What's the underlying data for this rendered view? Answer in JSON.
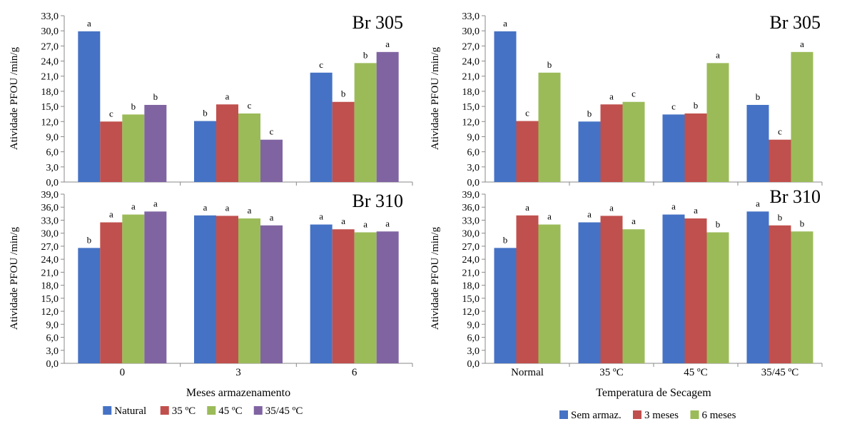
{
  "chart_data": [
    {
      "type": "bar",
      "title": "Br 305",
      "ylabel": "Atividade  PFOU /min/g",
      "xlabel": "",
      "ylim": [
        0,
        33
      ],
      "yticks": [
        "0,0",
        "3,0",
        "6,0",
        "9,0",
        "12,0",
        "15,0",
        "18,0",
        "21,0",
        "24,0",
        "27,0",
        "30,0",
        "33,0"
      ],
      "categories": [
        "0",
        "3",
        "6"
      ],
      "show_category_labels": false,
      "grid": false,
      "series": [
        {
          "name": "Natural",
          "color": "#4572c4",
          "values": [
            29.9,
            12.1,
            21.7
          ],
          "labels": [
            "a",
            "b",
            "c"
          ]
        },
        {
          "name": "35 ºC",
          "color": "#c0504d",
          "values": [
            12.0,
            15.4,
            15.9
          ],
          "labels": [
            "c",
            "a",
            "b"
          ]
        },
        {
          "name": "45 ºC",
          "color": "#9bbb59",
          "values": [
            13.4,
            13.6,
            23.6
          ],
          "labels": [
            "b",
            "c",
            "b"
          ]
        },
        {
          "name": "35/45 ºC",
          "color": "#8064a2",
          "values": [
            15.3,
            8.4,
            25.8
          ],
          "labels": [
            "b",
            "c",
            "a"
          ]
        }
      ]
    },
    {
      "type": "bar",
      "title": "Br 310",
      "ylabel": "Atividade  PFOU /min/g",
      "xlabel": "Meses armazenamento",
      "ylim": [
        0,
        39
      ],
      "yticks": [
        "0,0",
        "3,0",
        "6,0",
        "9,0",
        "12,0",
        "15,0",
        "18,0",
        "21,0",
        "24,0",
        "27,0",
        "30,0",
        "33,0",
        "36,0",
        "39,0"
      ],
      "categories": [
        "0",
        "3",
        "6"
      ],
      "show_category_labels": true,
      "grid": false,
      "legend": "bottom",
      "series": [
        {
          "name": "Natural",
          "color": "#4572c4",
          "values": [
            26.6,
            34.1,
            32.0
          ],
          "labels": [
            "b",
            "a",
            "a"
          ]
        },
        {
          "name": "35 ºC",
          "color": "#c0504d",
          "values": [
            32.5,
            34.0,
            30.9
          ],
          "labels": [
            "a",
            "a",
            "a"
          ]
        },
        {
          "name": "45 ºC",
          "color": "#9bbb59",
          "values": [
            34.3,
            33.4,
            30.2
          ],
          "labels": [
            "a",
            "a",
            "a"
          ]
        },
        {
          "name": "35/45 ºC",
          "color": "#8064a2",
          "values": [
            35.0,
            31.8,
            30.4
          ],
          "labels": [
            "a",
            "a",
            "a"
          ]
        }
      ]
    },
    {
      "type": "bar",
      "title": "Br 305",
      "ylabel": "Atividade  PFOU /min/g",
      "xlabel": "",
      "ylim": [
        0,
        33
      ],
      "yticks": [
        "0,0",
        "3,0",
        "6,0",
        "9,0",
        "12,0",
        "15,0",
        "18,0",
        "21,0",
        "24,0",
        "27,0",
        "30,0",
        "33,0"
      ],
      "categories": [
        "Normal",
        "35 ºC",
        "45 ºC",
        "35/45 ºC"
      ],
      "show_category_labels": false,
      "grid": false,
      "series": [
        {
          "name": "Sem armaz.",
          "color": "#4572c4",
          "values": [
            29.9,
            12.0,
            13.4,
            15.3
          ],
          "labels": [
            "a",
            "b",
            "c",
            "b"
          ]
        },
        {
          "name": "3 meses",
          "color": "#c0504d",
          "values": [
            12.1,
            15.4,
            13.6,
            8.4
          ],
          "labels": [
            "c",
            "a",
            "b",
            "c"
          ]
        },
        {
          "name": "6 meses",
          "color": "#9bbb59",
          "values": [
            21.7,
            15.9,
            23.6,
            25.8
          ],
          "labels": [
            "b",
            "c",
            "a",
            "a"
          ]
        }
      ]
    },
    {
      "type": "bar",
      "title": "Br 310",
      "ylabel": "Atividade  PFOU /min/g",
      "xlabel": "Temperatura de Secagem",
      "ylim": [
        0,
        39
      ],
      "yticks": [
        "0,0",
        "3,0",
        "6,0",
        "9,0",
        "12,0",
        "15,0",
        "18,0",
        "21,0",
        "24,0",
        "27,0",
        "30,0",
        "33,0",
        "36,0",
        "39,0"
      ],
      "categories": [
        "Normal",
        "35 ºC",
        "45 ºC",
        "35/45 ºC"
      ],
      "show_category_labels": true,
      "grid": false,
      "legend": "bottom",
      "series": [
        {
          "name": "Sem armaz.",
          "color": "#4572c4",
          "values": [
            26.6,
            32.5,
            34.3,
            35.0
          ],
          "labels": [
            "b",
            "a",
            "a",
            "a"
          ]
        },
        {
          "name": "3 meses",
          "color": "#c0504d",
          "values": [
            34.1,
            34.0,
            33.4,
            31.8
          ],
          "labels": [
            "a",
            "a",
            "a",
            "b"
          ]
        },
        {
          "name": "6 meses",
          "color": "#9bbb59",
          "values": [
            32.0,
            30.9,
            30.2,
            30.4
          ],
          "labels": [
            "a",
            "a",
            "b",
            "b"
          ]
        }
      ]
    }
  ]
}
